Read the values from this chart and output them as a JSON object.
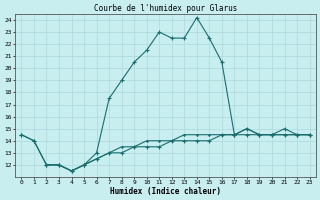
{
  "title": "Courbe de l'humidex pour Glarus",
  "xlabel": "Humidex (Indice chaleur)",
  "xlim": [
    -0.5,
    23.5
  ],
  "ylim": [
    11,
    24.5
  ],
  "yticks": [
    12,
    13,
    14,
    15,
    16,
    17,
    18,
    19,
    20,
    21,
    22,
    23,
    24
  ],
  "xticks": [
    0,
    1,
    2,
    3,
    4,
    5,
    6,
    7,
    8,
    9,
    10,
    11,
    12,
    13,
    14,
    15,
    16,
    17,
    18,
    19,
    20,
    21,
    22,
    23
  ],
  "bg_color": "#c8eef0",
  "line_color": "#1a6e6e",
  "line1_x": [
    0,
    1,
    2,
    3,
    4,
    5,
    6,
    7,
    8,
    9,
    10,
    11,
    12,
    13,
    14,
    15,
    16,
    17,
    18,
    19,
    20,
    21,
    22,
    23
  ],
  "line1_y": [
    14.5,
    14.0,
    12.0,
    12.0,
    11.5,
    12.0,
    13.0,
    17.5,
    19.0,
    20.5,
    21.5,
    23.0,
    22.5,
    22.5,
    24.2,
    22.5,
    20.5,
    14.5,
    15.0,
    14.5,
    14.5,
    15.0,
    14.5,
    14.5
  ],
  "line2_x": [
    0,
    1,
    2,
    3,
    4,
    5,
    6,
    7,
    8,
    9,
    10,
    11,
    12,
    13,
    14,
    15,
    16,
    17,
    18,
    19,
    20,
    21,
    22,
    23
  ],
  "line2_y": [
    14.5,
    14.0,
    12.0,
    12.0,
    11.5,
    12.0,
    12.5,
    13.0,
    13.0,
    13.5,
    13.5,
    13.5,
    14.0,
    14.0,
    14.0,
    14.0,
    14.5,
    14.5,
    14.5,
    14.5,
    14.5,
    14.5,
    14.5,
    14.5
  ],
  "line3_x": [
    2,
    3,
    4,
    5,
    6,
    7,
    8,
    9,
    10,
    11,
    12,
    13,
    14,
    15,
    16,
    17,
    18,
    19,
    20,
    21,
    22,
    23
  ],
  "line3_y": [
    12.0,
    12.0,
    11.5,
    12.0,
    12.5,
    13.0,
    13.5,
    13.5,
    14.0,
    14.0,
    14.0,
    14.5,
    14.5,
    14.5,
    14.5,
    14.5,
    15.0,
    14.5,
    14.5,
    14.5,
    14.5,
    14.5
  ]
}
